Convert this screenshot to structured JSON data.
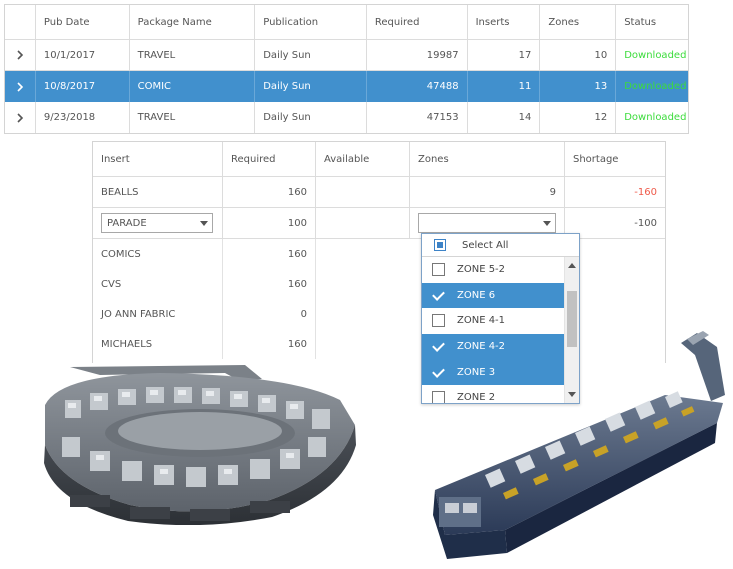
{
  "packages_grid": {
    "columns": [
      "Pub Date",
      "Package Name",
      "Publication",
      "Required",
      "Inserts",
      "Zones",
      "Status"
    ],
    "rows": [
      {
        "pub_date": "10/1/2017",
        "package_name": "TRAVEL",
        "publication": "Daily Sun",
        "required": "19987",
        "inserts": "17",
        "zones": "10",
        "status": "Downloaded",
        "selected": false
      },
      {
        "pub_date": "10/8/2017",
        "package_name": "COMIC",
        "publication": "Daily Sun",
        "required": "47488",
        "inserts": "11",
        "zones": "13",
        "status": "Downloaded",
        "selected": true
      },
      {
        "pub_date": "9/23/2018",
        "package_name": "TRAVEL",
        "publication": "Daily Sun",
        "required": "47153",
        "inserts": "14",
        "zones": "12",
        "status": "Downloaded",
        "selected": false
      }
    ]
  },
  "inserts_grid": {
    "columns": [
      "Insert",
      "Required",
      "Available",
      "Zones",
      "Shortage"
    ],
    "rows": [
      {
        "insert": "BEALLS",
        "required": "160",
        "available": "",
        "zones": "9",
        "shortage": "-160"
      },
      {
        "insert": "PARADE",
        "required": "100",
        "available": "",
        "zones": "",
        "shortage": "-100",
        "editing": true
      },
      {
        "insert": "COMICS",
        "required": "160"
      },
      {
        "insert": "CVS",
        "required": "160"
      },
      {
        "insert": "JO ANN FABRIC",
        "required": "0"
      },
      {
        "insert": "MICHAELS",
        "required": "160"
      }
    ]
  },
  "zone_dropdown": {
    "select_all_label": "Select All",
    "items": [
      {
        "label": "ZONE 5-2",
        "checked": false
      },
      {
        "label": "ZONE 6",
        "checked": true
      },
      {
        "label": "ZONE 4-1",
        "checked": false
      },
      {
        "label": "ZONE 4-2",
        "checked": true
      },
      {
        "label": "ZONE 3",
        "checked": true
      },
      {
        "label": "ZONE 2",
        "checked": false
      }
    ]
  },
  "colors": {
    "selection": "#4190cd",
    "status_downloaded": "#3cdc3c",
    "shortage_red": "#ef5a4a"
  }
}
